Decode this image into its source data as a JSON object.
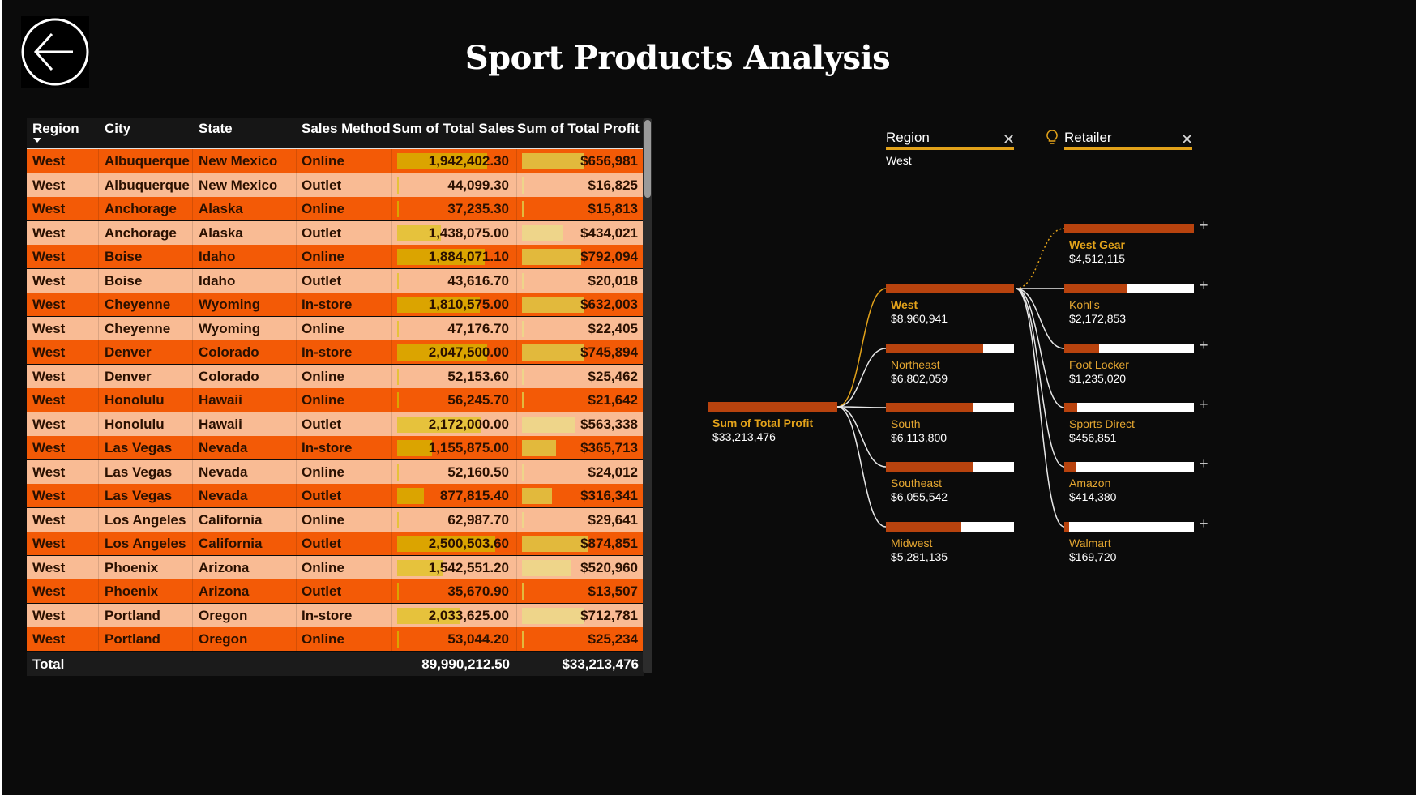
{
  "page": {
    "title": "Sport Products Analysis"
  },
  "table": {
    "headers": [
      "Region",
      "City",
      "State",
      "Sales Method",
      "Sum of Total Sales",
      "Sum of Total Profit"
    ],
    "rows": [
      {
        "region": "West",
        "city": "Albuquerque",
        "state": "New Mexico",
        "method": "Online",
        "sales": "1,942,402.30",
        "profit": "$656,981",
        "sales_frac": 0.78,
        "profit_frac": 0.52
      },
      {
        "region": "West",
        "city": "Albuquerque",
        "state": "New Mexico",
        "method": "Outlet",
        "sales": "44,099.30",
        "profit": "$16,825",
        "sales_frac": 0.0,
        "profit_frac": 0.0
      },
      {
        "region": "West",
        "city": "Anchorage",
        "state": "Alaska",
        "method": "Online",
        "sales": "37,235.30",
        "profit": "$15,813",
        "sales_frac": 0.0,
        "profit_frac": 0.0
      },
      {
        "region": "West",
        "city": "Anchorage",
        "state": "Alaska",
        "method": "Outlet",
        "sales": "1,438,075.00",
        "profit": "$434,021",
        "sales_frac": 0.38,
        "profit_frac": 0.34
      },
      {
        "region": "West",
        "city": "Boise",
        "state": "Idaho",
        "method": "Online",
        "sales": "1,884,071.10",
        "profit": "$792,094",
        "sales_frac": 0.76,
        "profit_frac": 0.5
      },
      {
        "region": "West",
        "city": "Boise",
        "state": "Idaho",
        "method": "Outlet",
        "sales": "43,616.70",
        "profit": "$20,018",
        "sales_frac": 0.0,
        "profit_frac": 0.0
      },
      {
        "region": "West",
        "city": "Cheyenne",
        "state": "Wyoming",
        "method": "In-store",
        "sales": "1,810,575.00",
        "profit": "$632,003",
        "sales_frac": 0.72,
        "profit_frac": 0.52
      },
      {
        "region": "West",
        "city": "Cheyenne",
        "state": "Wyoming",
        "method": "Online",
        "sales": "47,176.70",
        "profit": "$22,405",
        "sales_frac": 0.0,
        "profit_frac": 0.0
      },
      {
        "region": "West",
        "city": "Denver",
        "state": "Colorado",
        "method": "In-store",
        "sales": "2,047,500.00",
        "profit": "$745,894",
        "sales_frac": 0.78,
        "profit_frac": 0.52
      },
      {
        "region": "West",
        "city": "Denver",
        "state": "Colorado",
        "method": "Online",
        "sales": "52,153.60",
        "profit": "$25,462",
        "sales_frac": 0.0,
        "profit_frac": 0.0
      },
      {
        "region": "West",
        "city": "Honolulu",
        "state": "Hawaii",
        "method": "Online",
        "sales": "56,245.70",
        "profit": "$21,642",
        "sales_frac": 0.0,
        "profit_frac": 0.0
      },
      {
        "region": "West",
        "city": "Honolulu",
        "state": "Hawaii",
        "method": "Outlet",
        "sales": "2,172,000.00",
        "profit": "$563,338",
        "sales_frac": 0.73,
        "profit_frac": 0.45
      },
      {
        "region": "West",
        "city": "Las Vegas",
        "state": "Nevada",
        "method": "In-store",
        "sales": "1,155,875.00",
        "profit": "$365,713",
        "sales_frac": 0.3,
        "profit_frac": 0.29
      },
      {
        "region": "West",
        "city": "Las Vegas",
        "state": "Nevada",
        "method": "Online",
        "sales": "52,160.50",
        "profit": "$24,012",
        "sales_frac": 0.0,
        "profit_frac": 0.0
      },
      {
        "region": "West",
        "city": "Las Vegas",
        "state": "Nevada",
        "method": "Outlet",
        "sales": "877,815.40",
        "profit": "$316,341",
        "sales_frac": 0.23,
        "profit_frac": 0.25
      },
      {
        "region": "West",
        "city": "Los Angeles",
        "state": "California",
        "method": "Online",
        "sales": "62,987.70",
        "profit": "$29,641",
        "sales_frac": 0.0,
        "profit_frac": 0.0
      },
      {
        "region": "West",
        "city": "Los Angeles",
        "state": "California",
        "method": "Outlet",
        "sales": "2,500,503.60",
        "profit": "$874,851",
        "sales_frac": 0.85,
        "profit_frac": 0.56
      },
      {
        "region": "West",
        "city": "Phoenix",
        "state": "Arizona",
        "method": "Online",
        "sales": "1,542,551.20",
        "profit": "$520,960",
        "sales_frac": 0.4,
        "profit_frac": 0.41
      },
      {
        "region": "West",
        "city": "Phoenix",
        "state": "Arizona",
        "method": "Outlet",
        "sales": "35,670.90",
        "profit": "$13,507",
        "sales_frac": 0.0,
        "profit_frac": 0.0
      },
      {
        "region": "West",
        "city": "Portland",
        "state": "Oregon",
        "method": "In-store",
        "sales": "2,033,625.00",
        "profit": "$712,781",
        "sales_frac": 0.55,
        "profit_frac": 0.52
      },
      {
        "region": "West",
        "city": "Portland",
        "state": "Oregon",
        "method": "Online",
        "sales": "53,044.20",
        "profit": "$25,234",
        "sales_frac": 0.0,
        "profit_frac": 0.0
      }
    ],
    "total": {
      "label": "Total",
      "sales": "89,990,212.50",
      "profit": "$33,213,476"
    }
  },
  "tree": {
    "chips": [
      {
        "label": "Region",
        "value": "West"
      },
      {
        "label": "Retailer",
        "value": ""
      }
    ],
    "root": {
      "label": "Sum of Total Profit",
      "value": "$33,213,476",
      "fill": 1.0
    },
    "regions": [
      {
        "label": "West",
        "value": "$8,960,941",
        "fill": 1.0,
        "selected": true
      },
      {
        "label": "Northeast",
        "value": "$6,802,059",
        "fill": 0.76
      },
      {
        "label": "South",
        "value": "$6,113,800",
        "fill": 0.68
      },
      {
        "label": "Southeast",
        "value": "$6,055,542",
        "fill": 0.68
      },
      {
        "label": "Midwest",
        "value": "$5,281,135",
        "fill": 0.59
      }
    ],
    "retailers": [
      {
        "label": "West Gear",
        "value": "$4,512,115",
        "fill": 1.0,
        "selected": true
      },
      {
        "label": "Kohl's",
        "value": "$2,172,853",
        "fill": 0.48
      },
      {
        "label": "Foot Locker",
        "value": "$1,235,020",
        "fill": 0.27
      },
      {
        "label": "Sports Direct",
        "value": "$456,851",
        "fill": 0.1
      },
      {
        "label": "Amazon",
        "value": "$414,380",
        "fill": 0.09
      },
      {
        "label": "Walmart",
        "value": "$169,720",
        "fill": 0.04
      }
    ],
    "colors": {
      "bar_fill": "#b8430e",
      "bar_bg": "#ffffff",
      "accent": "#e2a21a",
      "label_dim": "#e4a631"
    }
  }
}
